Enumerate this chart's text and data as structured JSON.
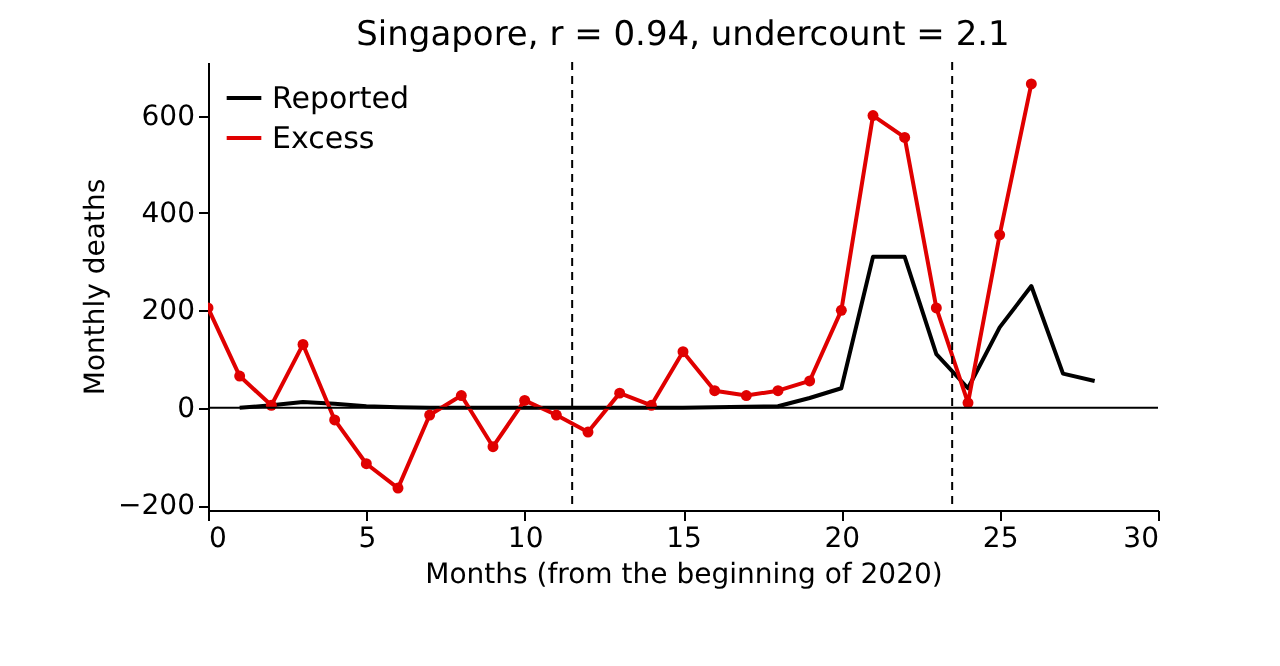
{
  "chart_data": {
    "type": "line",
    "title": "Singapore, r = 0.94, undercount = 2.1",
    "xlabel": "Months (from the beginning of 2020)",
    "ylabel": "Monthly deaths",
    "xlim": [
      0,
      30
    ],
    "xticks": [
      0,
      5,
      10,
      15,
      20,
      25,
      30
    ],
    "ylim": [
      -210,
      710
    ],
    "yticks": [
      -200,
      0,
      200,
      400,
      600
    ],
    "grid": false,
    "legend": "top left",
    "series": [
      {
        "name": "Reported",
        "color": "#000000",
        "marker": "none",
        "x": [
          1,
          2,
          3,
          4,
          5,
          6,
          7,
          8,
          9,
          10,
          11,
          12,
          13,
          14,
          15,
          16,
          17,
          18,
          19,
          20,
          21,
          22,
          23,
          24,
          25,
          26,
          27,
          28
        ],
        "values": [
          0,
          5,
          12,
          8,
          3,
          1,
          0,
          0,
          0,
          0,
          0,
          0,
          0,
          0,
          0,
          1,
          2,
          3,
          20,
          40,
          310,
          310,
          110,
          40,
          165,
          250,
          70,
          55
        ]
      },
      {
        "name": "Excess",
        "color": "#e00000",
        "marker": "circle",
        "x": [
          0,
          1,
          2,
          3,
          4,
          5,
          6,
          7,
          8,
          9,
          10,
          11,
          12,
          13,
          14,
          15,
          16,
          17,
          18,
          19,
          20,
          21,
          22,
          23,
          24,
          25,
          26
        ],
        "values": [
          205,
          65,
          5,
          130,
          -25,
          -115,
          -165,
          -15,
          25,
          -80,
          15,
          -15,
          -50,
          30,
          5,
          115,
          35,
          25,
          35,
          55,
          200,
          600,
          555,
          205,
          10,
          355,
          665
        ]
      }
    ],
    "ref_lines": [
      {
        "axis": "x",
        "value": 11.5,
        "line_style": "dashed",
        "color": "#000000"
      },
      {
        "axis": "x",
        "value": 23.5,
        "line_style": "dashed",
        "color": "#000000"
      },
      {
        "axis": "y",
        "value": 0,
        "line_style": "solid",
        "color": "#000000"
      }
    ]
  }
}
